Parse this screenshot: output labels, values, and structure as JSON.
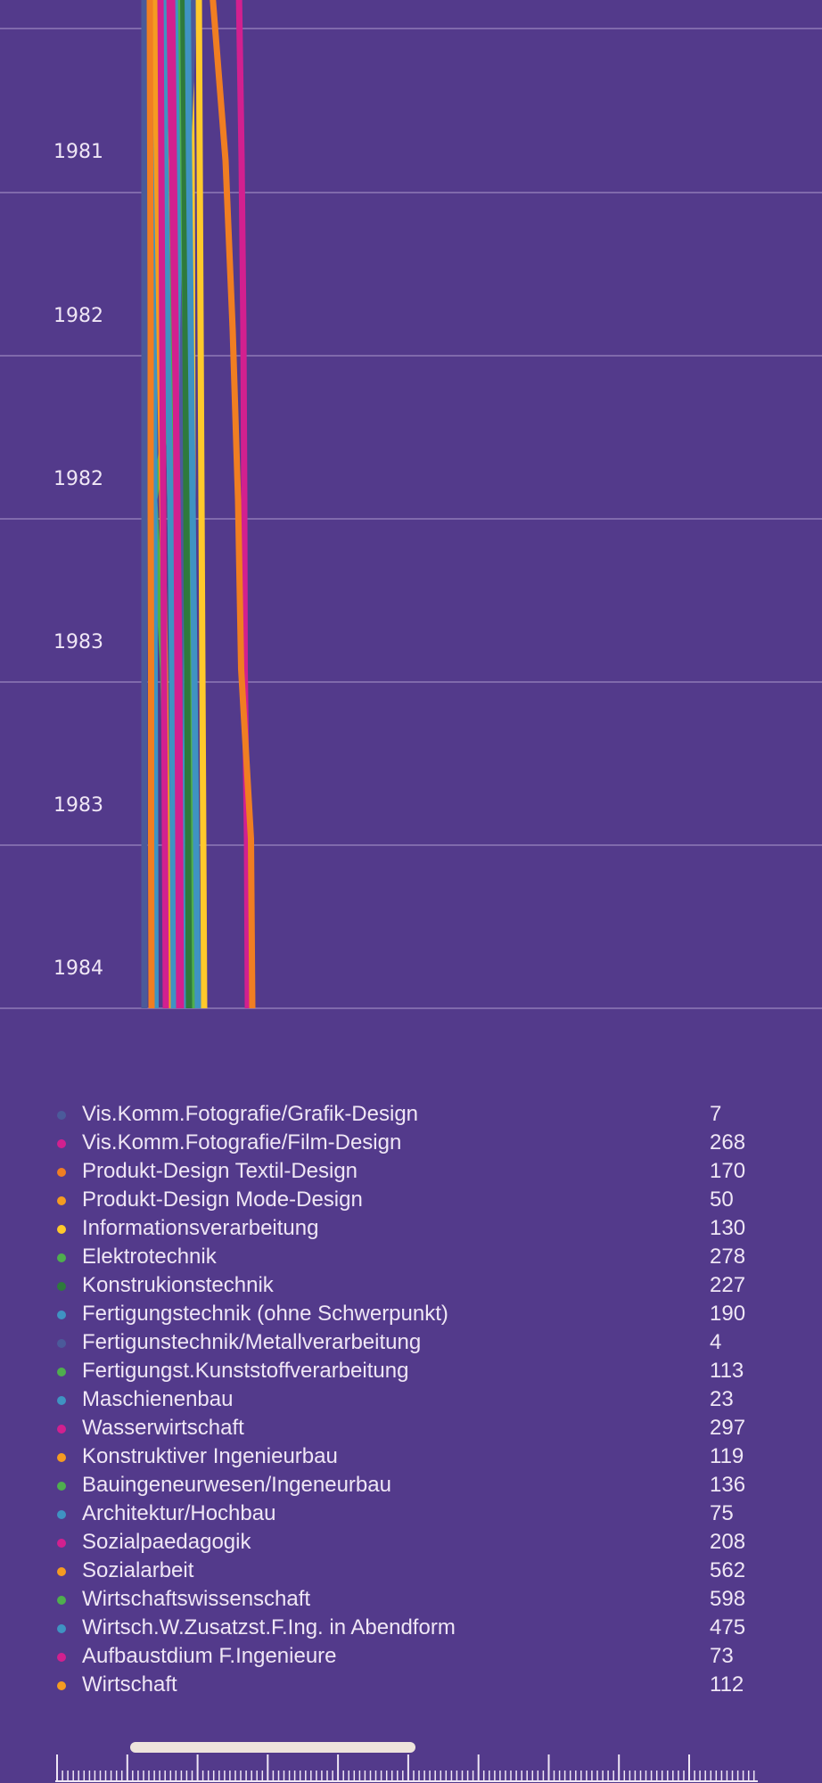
{
  "chart_data": {
    "type": "line",
    "orientation": "vertical-time",
    "y_ticks": [
      "1981",
      "1982",
      "1982",
      "1983",
      "1983",
      "1984"
    ],
    "x_range": [
      0,
      600
    ],
    "series": [
      {
        "name": "Vis.Komm.Fotografie/Grafik-Design",
        "color": "#4b5a9a",
        "values": [
          8,
          8,
          8,
          8,
          8,
          8,
          8
        ]
      },
      {
        "name": "Vis.Komm.Fotografie/Film-Design",
        "color": "#d2208f",
        "values": [
          220,
          226,
          230,
          232,
          233,
          238,
          240
        ]
      },
      {
        "name": "Produkt-Design Textil-Design",
        "color": "#f07e22",
        "values": [
          160,
          190,
          206,
          218,
          225,
          247,
          250
        ]
      },
      {
        "name": "Produkt-Design Mode-Design",
        "color": "#f59b21",
        "values": [
          50,
          56,
          60,
          66,
          72,
          78,
          84
        ]
      },
      {
        "name": "Informationsverarbeitung",
        "color": "#ffc92b",
        "values": [
          110,
          114,
          115,
          116,
          116,
          112,
          110
        ]
      },
      {
        "name": "Elektrotechnik",
        "color": "#4fae4e",
        "values": [
          100,
          94,
          90,
          30,
          50,
          60,
          70
        ]
      },
      {
        "name": "Konstrukionstechnik",
        "color": "#2e7a3c",
        "values": [
          75,
          76,
          77,
          78,
          80,
          82,
          84
        ]
      },
      {
        "name": "Fertigungstechnik (ohne Schwerpunkt)",
        "color": "#3f93c2",
        "values": [
          82,
          84,
          86,
          88,
          90,
          92,
          94
        ]
      },
      {
        "name": "Fertigunstechnik/Metallverarbeitung",
        "color": "#4b5a9a",
        "values": [
          120,
          105,
          95,
          90,
          88,
          86,
          84
        ]
      },
      {
        "name": "Fertigungst.Kunststoffverarbeitung",
        "color": "#4fae4e",
        "values": [
          65,
          70,
          74,
          78,
          80,
          82,
          84
        ]
      },
      {
        "name": "Maschienenbau",
        "color": "#3f93c2",
        "values": [
          28,
          29,
          30,
          30,
          31,
          32,
          33
        ]
      },
      {
        "name": "Wasserwirtschaft",
        "color": "#d2208f",
        "values": [
          60,
          70,
          76,
          82,
          86,
          88,
          90
        ]
      },
      {
        "name": "Konstruktiver Ingenieurbau",
        "color": "#f59b21",
        "values": [
          30,
          36,
          42,
          48,
          54,
          58,
          62
        ]
      },
      {
        "name": "Bauingeneurwesen/Ingeneurbau",
        "color": "#4fae4e",
        "values": [
          90,
          95,
          100,
          104,
          108,
          112,
          115
        ]
      },
      {
        "name": "Architektur/Hochbau",
        "color": "#3f93c2",
        "values": [
          50,
          55,
          60,
          66,
          70,
          72,
          74
        ]
      },
      {
        "name": "Sozialpaedagogik",
        "color": "#d2208f",
        "values": [
          70,
          74,
          78,
          80,
          82,
          84,
          86
        ]
      },
      {
        "name": "Sozialarbeit",
        "color": "#f07e22",
        "values": [
          20,
          21,
          22,
          22,
          23,
          23,
          24
        ]
      },
      {
        "name": "Wirtschaftswissenschaft",
        "color": "#2e7a3c",
        "values": [
          95,
          98,
          100,
          102,
          104,
          106,
          108
        ]
      },
      {
        "name": "Wirtsch.W.Zusatzst.F.Ing. in Abendform",
        "color": "#3f93c2",
        "values": [
          105,
          108,
          112,
          116,
          120,
          124,
          128
        ]
      },
      {
        "name": "Aufbaustdium F.Ingenieure",
        "color": "#d2208f",
        "values": [
          44,
          46,
          48,
          50,
          52,
          54,
          56
        ]
      },
      {
        "name": "Wirtschaft",
        "color": "#ffc92b",
        "values": [
          130,
          132,
          134,
          136,
          138,
          140,
          142
        ]
      }
    ]
  },
  "legend": {
    "items": [
      {
        "label": "Vis.Komm.Fotografie/Grafik-Design",
        "value": "7",
        "color": "#4b5a9a"
      },
      {
        "label": "Vis.Komm.Fotografie/Film-Design",
        "value": "268",
        "color": "#d2208f"
      },
      {
        "label": "Produkt-Design Textil-Design",
        "value": "170",
        "color": "#f07e22"
      },
      {
        "label": "Produkt-Design Mode-Design",
        "value": "50",
        "color": "#f59b21"
      },
      {
        "label": "Informationsverarbeitung",
        "value": "130",
        "color": "#ffc92b"
      },
      {
        "label": "Elektrotechnik",
        "value": "278",
        "color": "#4fae4e"
      },
      {
        "label": "Konstrukionstechnik",
        "value": "227",
        "color": "#2e7a3c"
      },
      {
        "label": "Fertigungstechnik (ohne Schwerpunkt)",
        "value": "190",
        "color": "#3f93c2"
      },
      {
        "label": "Fertigunstechnik/Metallverarbeitung",
        "value": "4",
        "color": "#4b5a9a"
      },
      {
        "label": "Fertigungst.Kunststoffverarbeitung",
        "value": "113",
        "color": "#4fae4e"
      },
      {
        "label": "Maschienenbau",
        "value": "23",
        "color": "#3f93c2"
      },
      {
        "label": "Wasserwirtschaft",
        "value": "297",
        "color": "#d2208f"
      },
      {
        "label": "Konstruktiver Ingenieurbau",
        "value": "119",
        "color": "#f59b21"
      },
      {
        "label": "Bauingeneurwesen/Ingeneurbau",
        "value": "136",
        "color": "#4fae4e"
      },
      {
        "label": "Architektur/Hochbau",
        "value": "75",
        "color": "#3f93c2"
      },
      {
        "label": "Sozialpaedagogik",
        "value": "208",
        "color": "#d2208f"
      },
      {
        "label": "Sozialarbeit",
        "value": "562",
        "color": "#f59b21"
      },
      {
        "label": "Wirtschaftswissenschaft",
        "value": "598",
        "color": "#4fae4e"
      },
      {
        "label": "Wirtsch.W.Zusatzst.F.Ing. in Abendform",
        "value": "475",
        "color": "#3f93c2"
      },
      {
        "label": "Aufbaustdium F.Ingenieure",
        "value": "73",
        "color": "#d2208f"
      },
      {
        "label": "Wirtschaft",
        "value": "112",
        "color": "#f59b21"
      }
    ]
  },
  "colors": {
    "background": "#533a8b",
    "grid": "#8f7ab8",
    "text": "#efe6f5",
    "slider_handle": "#eee4dc"
  }
}
